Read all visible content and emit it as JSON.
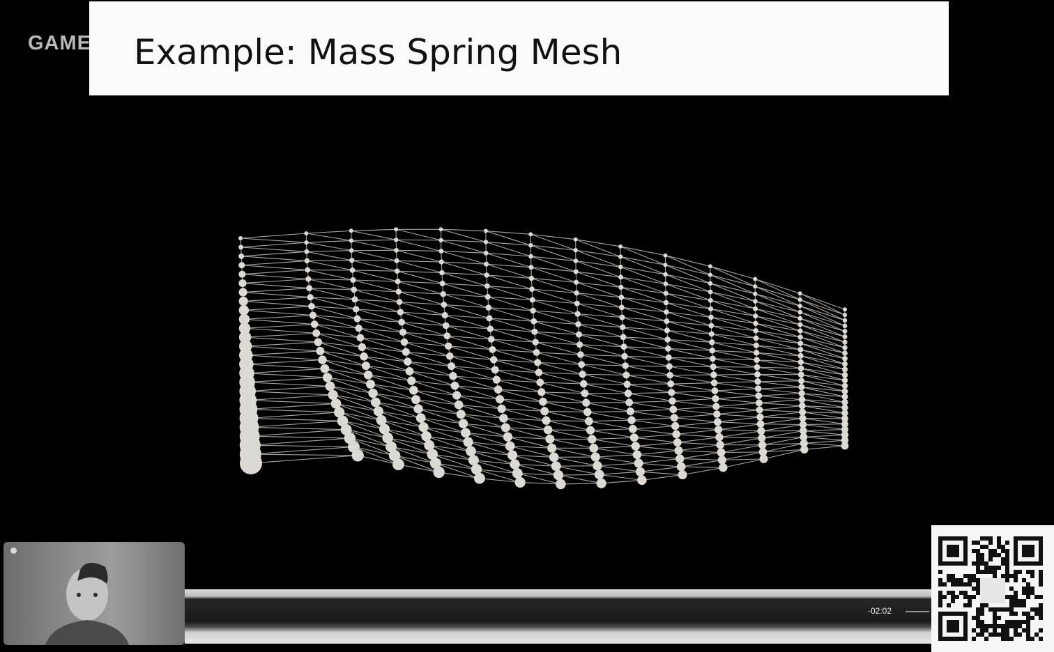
{
  "header": {
    "logo_text": "GAME",
    "slide_title": "Example: Mass Spring Mesh"
  },
  "video": {
    "remaining_time": "-02:02"
  },
  "colors": {
    "background": "#000000",
    "mesh": "#d9d6d2",
    "title_banner": "#fafafa"
  },
  "icons": {
    "qr": "qr-code-icon",
    "webcam": "presenter-video-feed"
  }
}
